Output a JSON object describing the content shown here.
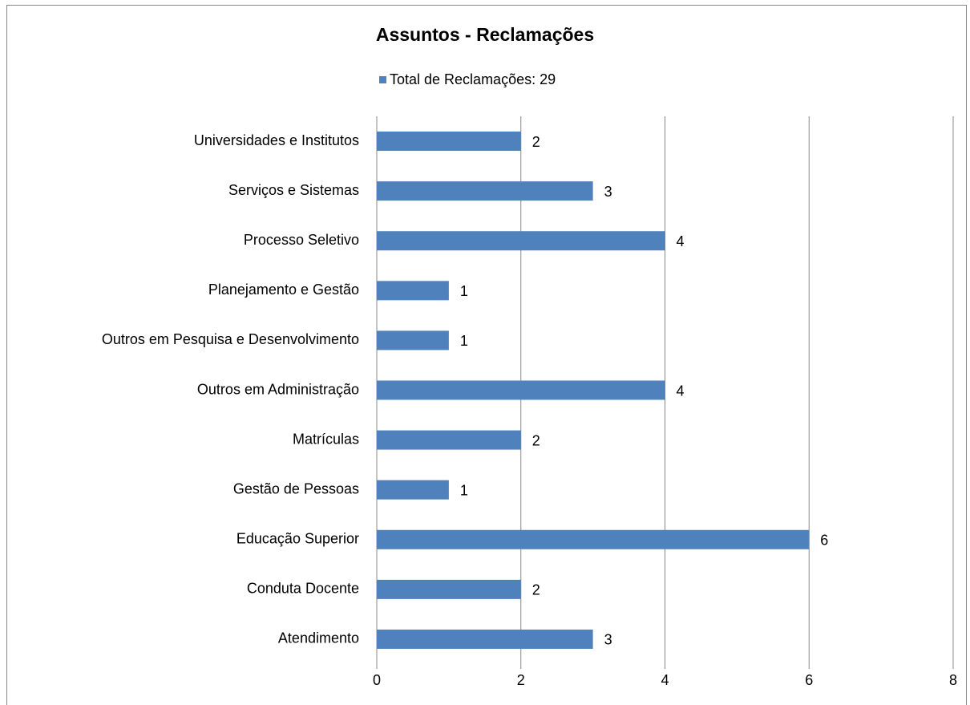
{
  "chart_data": {
    "type": "bar",
    "orientation": "horizontal",
    "title": "Assuntos - Reclamações",
    "categories": [
      "Universidades e Institutos",
      "Serviços e Sistemas",
      "Processo Seletivo",
      "Planejamento e Gestão",
      "Outros em Pesquisa e Desenvolvimento",
      "Outros em Administração",
      "Matrículas",
      "Gestão de Pessoas",
      "Educação Superior",
      "Conduta Docente",
      "Atendimento"
    ],
    "series": [
      {
        "name": "Total de Reclamações: 29",
        "color": "#4f81bd",
        "values": [
          2,
          3,
          4,
          1,
          1,
          4,
          2,
          1,
          6,
          2,
          3
        ]
      }
    ],
    "xlim": [
      0,
      8
    ],
    "xticks": [
      0,
      2,
      4,
      6,
      8
    ],
    "grid": true,
    "legend": "top"
  }
}
